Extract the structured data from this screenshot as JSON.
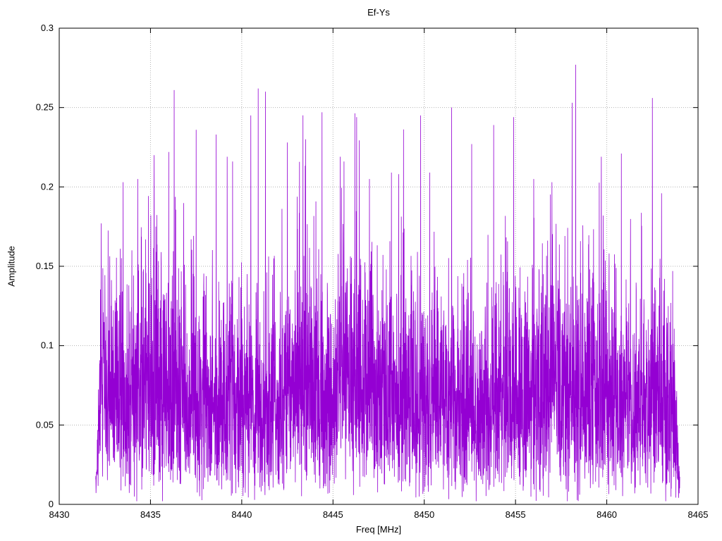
{
  "chart_data": {
    "type": "line",
    "title": "Ef-Ys",
    "xlabel": "Freq [MHz]",
    "ylabel": "Amplitude",
    "xlim": [
      8430,
      8465
    ],
    "ylim": [
      0,
      0.3
    ],
    "x_ticks": [
      8430,
      8435,
      8440,
      8445,
      8450,
      8455,
      8460,
      8465
    ],
    "x_tick_labels": [
      "8430",
      "8435",
      "8440",
      "8445",
      "8450",
      "8455",
      "8460",
      "8465"
    ],
    "y_ticks": [
      0,
      0.05,
      0.1,
      0.15,
      0.2,
      0.25,
      0.3
    ],
    "y_tick_labels": [
      "0",
      "0.05",
      "0.1",
      "0.15",
      "0.2",
      "0.25",
      "0.3"
    ],
    "grid": true,
    "legend_position": "none",
    "plot_bg": "#ffffff",
    "grid_color": "#b3b3b3",
    "border_color": "#000000",
    "series": [
      {
        "name": "Ef-Ys spectrum",
        "color": "#9400D3",
        "kind": "dense-noise-spectrum",
        "band": [
          8432.0,
          8464.0
        ],
        "noise": {
          "distribution": "rayleigh",
          "sigma": 0.055,
          "mean_amplitude": 0.07,
          "typical_range": [
            0.01,
            0.16
          ],
          "points": 4200,
          "seed": 1337,
          "edge_taper_mhz": 0.3
        },
        "peaks": [
          [
            8433.5,
            0.203
          ],
          [
            8434.3,
            0.205
          ],
          [
            8435.2,
            0.22
          ],
          [
            8436.0,
            0.222
          ],
          [
            8436.3,
            0.261
          ],
          [
            8437.5,
            0.236
          ],
          [
            8438.6,
            0.233
          ],
          [
            8439.2,
            0.219
          ],
          [
            8439.5,
            0.216
          ],
          [
            8440.5,
            0.245
          ],
          [
            8440.9,
            0.262
          ],
          [
            8441.3,
            0.26
          ],
          [
            8442.5,
            0.228
          ],
          [
            8443.5,
            0.23
          ],
          [
            8444.4,
            0.247
          ],
          [
            8445.4,
            0.219
          ],
          [
            8445.6,
            0.216
          ],
          [
            8446.3,
            0.244
          ],
          [
            8447.0,
            0.205
          ],
          [
            8448.2,
            0.209
          ],
          [
            8448.6,
            0.208
          ],
          [
            8449.8,
            0.245
          ],
          [
            8450.3,
            0.209
          ],
          [
            8451.5,
            0.25
          ],
          [
            8452.6,
            0.227
          ],
          [
            8453.8,
            0.239
          ],
          [
            8454.9,
            0.244
          ],
          [
            8456.0,
            0.205
          ],
          [
            8457.0,
            0.203
          ],
          [
            8458.1,
            0.253
          ],
          [
            8458.3,
            0.277
          ],
          [
            8459.7,
            0.219
          ],
          [
            8460.8,
            0.221
          ],
          [
            8462.5,
            0.256
          ],
          [
            8463.0,
            0.196
          ]
        ]
      }
    ]
  }
}
